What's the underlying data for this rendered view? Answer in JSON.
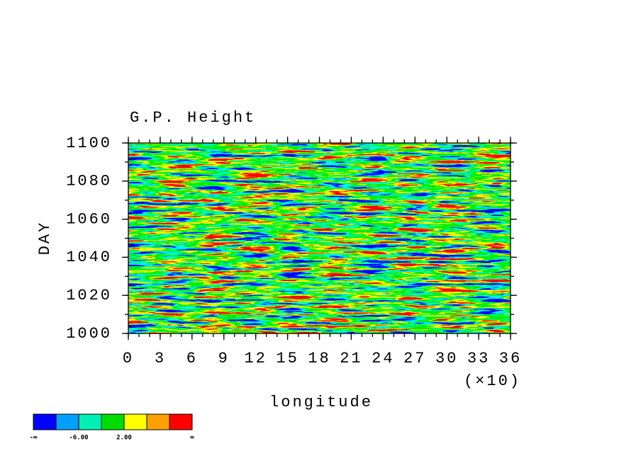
{
  "chart_data": {
    "type": "heatmap",
    "title": "G.P. Height",
    "xlabel": "longitude",
    "x_multiplier": "(×10)",
    "ylabel": "DAY",
    "xlim": [
      0,
      36
    ],
    "xticks": [
      0,
      3,
      6,
      9,
      12,
      15,
      18,
      21,
      24,
      27,
      30,
      33,
      36
    ],
    "xminorticks": [
      0,
      1,
      2,
      3,
      4,
      5,
      6,
      7,
      8,
      9,
      10,
      11,
      12,
      13,
      14,
      15,
      16,
      17,
      18,
      19,
      20,
      21,
      22,
      23,
      24,
      25,
      26,
      27,
      28,
      29,
      30,
      31,
      32,
      33,
      34,
      35,
      36
    ],
    "ylim": [
      1000,
      1100
    ],
    "yticks": [
      1000,
      1020,
      1040,
      1060,
      1080,
      1100
    ],
    "yminorticks": [
      1000,
      1010,
      1020,
      1030,
      1040,
      1050,
      1060,
      1070,
      1080,
      1090,
      1100
    ],
    "colorbar": {
      "colors": [
        "#0000ff",
        "#00a0ff",
        "#00f0b4",
        "#00dc00",
        "#ffff00",
        "#ffa000",
        "#ff0000"
      ],
      "boundary_labels": [
        "-∞",
        null,
        "-6.00",
        null,
        "2.00",
        null,
        null,
        "∞"
      ]
    }
  }
}
